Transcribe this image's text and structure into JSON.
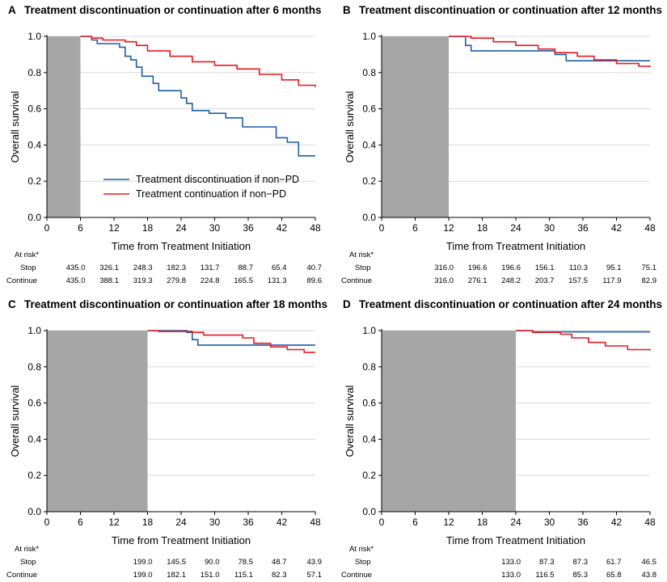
{
  "colors": {
    "discontinue": "#1f5fa8",
    "continue": "#e8191f",
    "shade": "#a6a6a6",
    "grid": "#d9d9d9"
  },
  "legend": {
    "discontinue": "Treatment discontinuation if non−PD",
    "continue": "Treatment continuation if non−PD"
  },
  "chart_data": [
    {
      "type": "line",
      "panel_letter": "A",
      "title": "Treatment discontinuation or continuation after 6 months",
      "xlabel": "Time from Treatment Initiation",
      "ylabel": "Overall survival",
      "xlim": [
        0,
        48
      ],
      "ylim": [
        0,
        1
      ],
      "xticks": [
        "0",
        "6",
        "12",
        "18",
        "24",
        "30",
        "36",
        "42",
        "48"
      ],
      "yticks": [
        "0.0",
        "0.2",
        "0.4",
        "0.6",
        "0.8",
        "1.0"
      ],
      "grid": true,
      "legend_position": "bottom-center",
      "shaded_x": [
        0,
        6
      ],
      "series": [
        {
          "key": "discontinue",
          "points": [
            [
              6,
              1.0
            ],
            [
              8,
              0.98
            ],
            [
              9,
              0.96
            ],
            [
              13,
              0.94
            ],
            [
              14,
              0.89
            ],
            [
              15,
              0.87
            ],
            [
              16,
              0.83
            ],
            [
              17,
              0.78
            ],
            [
              19,
              0.74
            ],
            [
              20,
              0.7
            ],
            [
              24,
              0.66
            ],
            [
              25,
              0.63
            ],
            [
              26,
              0.59
            ],
            [
              29,
              0.575
            ],
            [
              32,
              0.55
            ],
            [
              35,
              0.5
            ],
            [
              41,
              0.44
            ],
            [
              43,
              0.415
            ],
            [
              45,
              0.34
            ],
            [
              48,
              0.34
            ]
          ]
        },
        {
          "key": "continue",
          "points": [
            [
              6,
              1.0
            ],
            [
              8,
              0.99
            ],
            [
              10,
              0.98
            ],
            [
              14,
              0.97
            ],
            [
              16,
              0.95
            ],
            [
              18,
              0.92
            ],
            [
              22,
              0.89
            ],
            [
              26,
              0.86
            ],
            [
              30,
              0.84
            ],
            [
              34,
              0.82
            ],
            [
              38,
              0.79
            ],
            [
              42,
              0.76
            ],
            [
              45,
              0.73
            ],
            [
              48,
              0.72
            ]
          ]
        }
      ],
      "at_risk": {
        "label": "At risk*",
        "times": [
          6,
          12,
          18,
          24,
          30,
          36,
          42,
          48
        ],
        "rows": [
          {
            "label": "Stop",
            "values": [
              "435.0",
              "326.1",
              "248.3",
              "182.3",
              "131.7",
              "88.7",
              "65.4",
              "40.7"
            ]
          },
          {
            "label": "Continue",
            "values": [
              "435.0",
              "388.1",
              "319.3",
              "279.8",
              "224.8",
              "165.5",
              "131.3",
              "89.6"
            ]
          }
        ]
      }
    },
    {
      "type": "line",
      "panel_letter": "B",
      "title": "Treatment discontinuation or continuation after 12 months",
      "xlabel": "Time from Treatment Initiation",
      "ylabel": "Overall survival",
      "xlim": [
        0,
        48
      ],
      "ylim": [
        0,
        1
      ],
      "xticks": [
        "0",
        "6",
        "12",
        "18",
        "24",
        "30",
        "36",
        "42",
        "48"
      ],
      "yticks": [
        "0.0",
        "0.2",
        "0.4",
        "0.6",
        "0.8",
        "1.0"
      ],
      "grid": true,
      "shaded_x": [
        0,
        12
      ],
      "series": [
        {
          "key": "discontinue",
          "points": [
            [
              12,
              1.0
            ],
            [
              15,
              0.95
            ],
            [
              16,
              0.92
            ],
            [
              31,
              0.9
            ],
            [
              33,
              0.865
            ],
            [
              48,
              0.865
            ]
          ]
        },
        {
          "key": "continue",
          "points": [
            [
              12,
              1.0
            ],
            [
              16,
              0.99
            ],
            [
              20,
              0.97
            ],
            [
              24,
              0.95
            ],
            [
              28,
              0.93
            ],
            [
              31,
              0.91
            ],
            [
              35,
              0.89
            ],
            [
              38,
              0.87
            ],
            [
              42,
              0.85
            ],
            [
              46,
              0.835
            ],
            [
              48,
              0.83
            ]
          ]
        }
      ],
      "at_risk": {
        "label": "At risk*",
        "times": [
          12,
          18,
          24,
          30,
          36,
          42,
          48
        ],
        "rows": [
          {
            "label": "Stop",
            "values": [
              "316.0",
              "196.6",
              "196.6",
              "156.1",
              "110.3",
              "95.1",
              "75.1"
            ]
          },
          {
            "label": "Continue",
            "values": [
              "316.0",
              "276.1",
              "248.2",
              "203.7",
              "157.5",
              "117.9",
              "82.9"
            ]
          }
        ]
      }
    },
    {
      "type": "line",
      "panel_letter": "C",
      "title": "Treatment discontinuation or continuation after 18 months",
      "xlabel": "Time from Treatment Initiation",
      "ylabel": "Overall survival",
      "xlim": [
        0,
        48
      ],
      "ylim": [
        0,
        1
      ],
      "xticks": [
        "0",
        "6",
        "12",
        "18",
        "24",
        "30",
        "36",
        "42",
        "48"
      ],
      "yticks": [
        "0.0",
        "0.2",
        "0.4",
        "0.6",
        "0.8",
        "1.0"
      ],
      "grid": true,
      "shaded_x": [
        0,
        18
      ],
      "series": [
        {
          "key": "discontinue",
          "points": [
            [
              18,
              1.0
            ],
            [
              25,
              0.99
            ],
            [
              26,
              0.95
            ],
            [
              27,
              0.92
            ],
            [
              48,
              0.92
            ]
          ]
        },
        {
          "key": "continue",
          "points": [
            [
              18,
              1.0
            ],
            [
              20,
              0.995
            ],
            [
              26,
              0.99
            ],
            [
              28,
              0.975
            ],
            [
              35,
              0.96
            ],
            [
              37,
              0.93
            ],
            [
              40,
              0.91
            ],
            [
              43,
              0.895
            ],
            [
              46,
              0.88
            ],
            [
              48,
              0.88
            ]
          ]
        }
      ],
      "at_risk": {
        "label": "At risk*",
        "times": [
          18,
          24,
          30,
          36,
          42,
          48
        ],
        "rows": [
          {
            "label": "Stop",
            "values": [
              "199.0",
              "145.5",
              "90.0",
              "78.5",
              "48.7",
              "43.9"
            ]
          },
          {
            "label": "Continue",
            "values": [
              "199.0",
              "182.1",
              "151.0",
              "115.1",
              "82.3",
              "57.1"
            ]
          }
        ]
      }
    },
    {
      "type": "line",
      "panel_letter": "D",
      "title": "Treatment discontinuation or continuation after 24 months",
      "xlabel": "Time from Treatment Initiation",
      "ylabel": "Overall survival",
      "xlim": [
        0,
        48
      ],
      "ylim": [
        0,
        1
      ],
      "xticks": [
        "0",
        "6",
        "12",
        "18",
        "24",
        "30",
        "36",
        "42",
        "48"
      ],
      "yticks": [
        "0.0",
        "0.2",
        "0.4",
        "0.6",
        "0.8",
        "1.0"
      ],
      "grid": true,
      "shaded_x": [
        0,
        24
      ],
      "series": [
        {
          "key": "discontinue",
          "points": [
            [
              24,
              1.0
            ],
            [
              27,
              0.993
            ],
            [
              48,
              0.993
            ]
          ]
        },
        {
          "key": "continue",
          "points": [
            [
              24,
              1.0
            ],
            [
              27,
              0.99
            ],
            [
              32,
              0.98
            ],
            [
              34,
              0.96
            ],
            [
              37,
              0.935
            ],
            [
              40,
              0.915
            ],
            [
              44,
              0.895
            ],
            [
              48,
              0.89
            ]
          ]
        }
      ],
      "at_risk": {
        "label": "At risk*",
        "times": [
          24,
          30,
          36,
          42,
          48
        ],
        "rows": [
          {
            "label": "Stop",
            "values": [
              "133.0",
              "87.3",
              "87.3",
              "61.7",
              "46.5"
            ]
          },
          {
            "label": "Continue",
            "values": [
              "133.0",
              "116.5",
              "85.3",
              "65.8",
              "43.8"
            ]
          }
        ]
      }
    }
  ]
}
